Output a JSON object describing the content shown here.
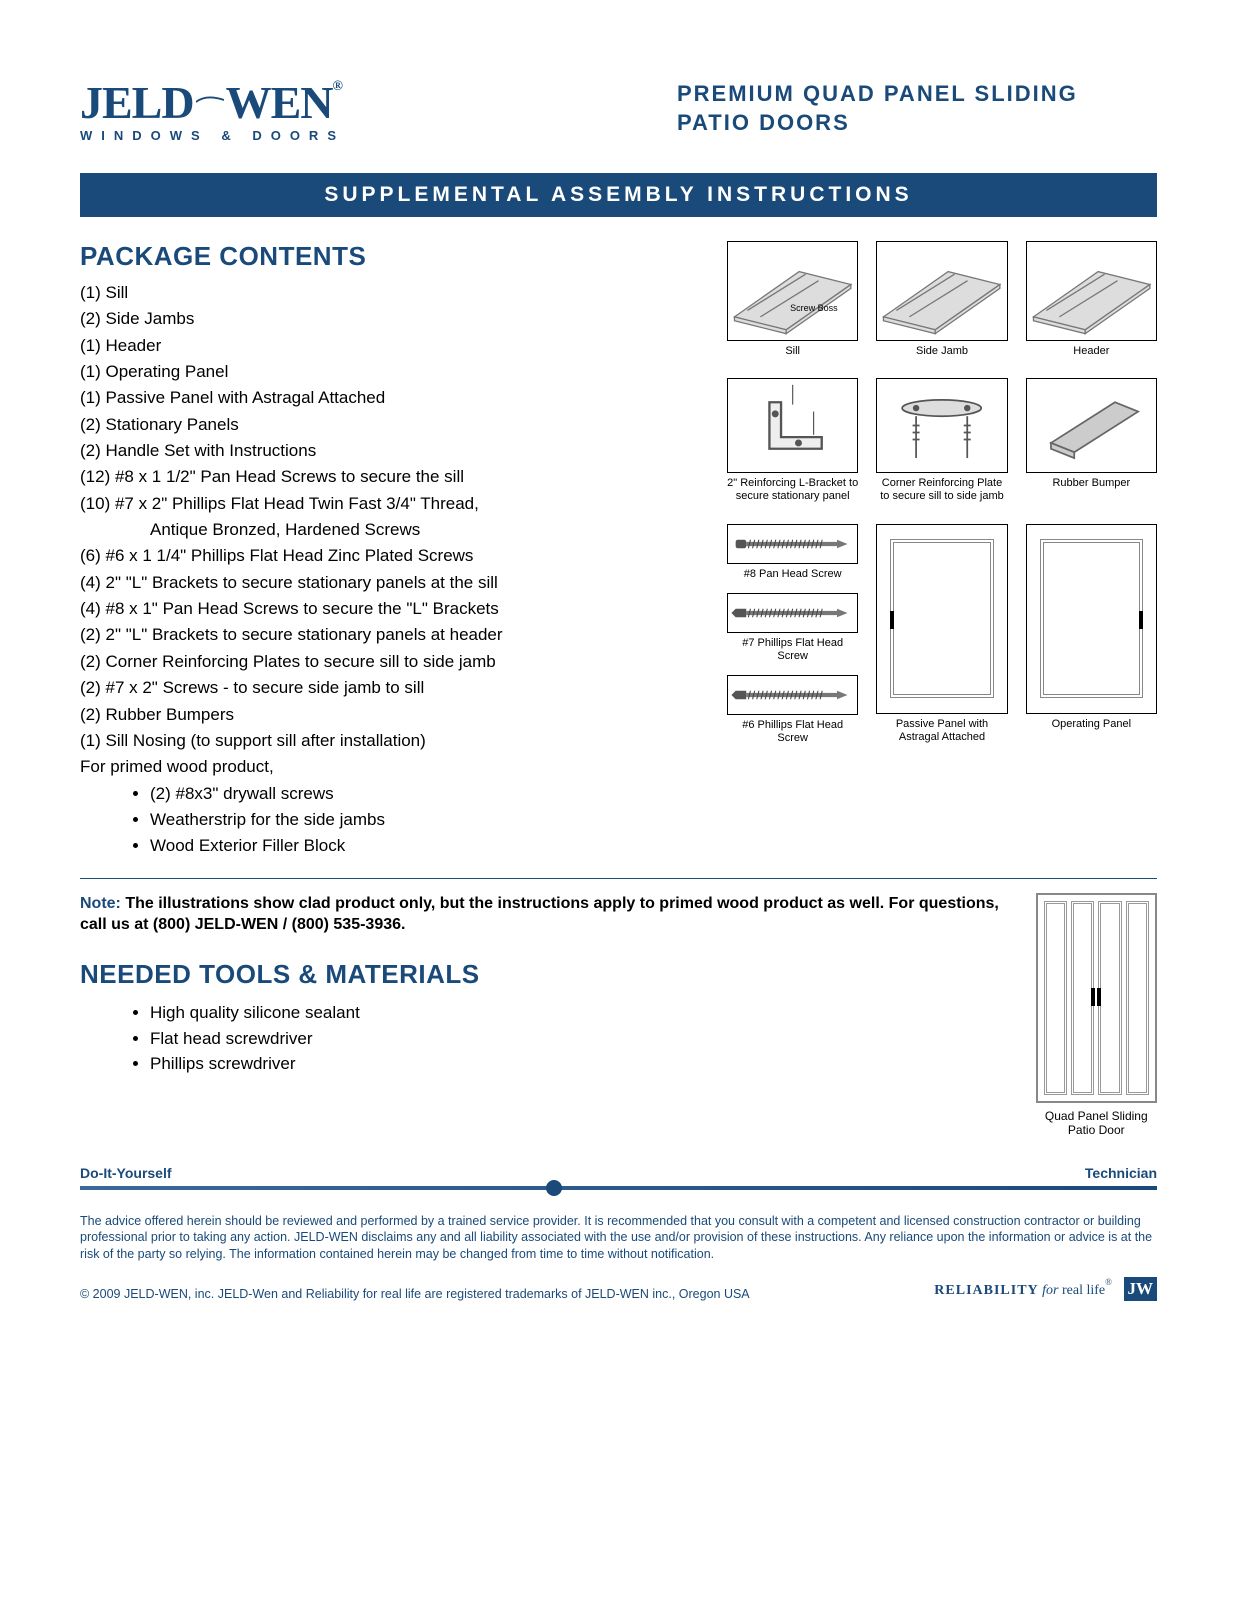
{
  "brand": {
    "name_left": "JELD",
    "name_right": "WEN",
    "reg": "®",
    "tagline": "WINDOWS & DOORS",
    "color": "#1a4a7a"
  },
  "product_title": "PREMIUM QUAD PANEL SLIDING PATIO DOORS",
  "banner": "SUPPLEMENTAL ASSEMBLY INSTRUCTIONS",
  "package": {
    "heading": "PACKAGE CONTENTS",
    "items": [
      "(1) Sill",
      "(2) Side Jambs",
      "(1) Header",
      "(1) Operating Panel",
      "(1) Passive Panel with Astragal Attached",
      "(2) Stationary Panels",
      "(2) Handle Set with Instructions",
      "(12) #8 x 1 1/2\" Pan Head Screws to secure the sill",
      "(10) #7 x 2\" Phillips Flat Head Twin Fast 3/4\" Thread,",
      "Antique Bronzed, Hardened Screws",
      "(6) #6 x 1 1/4\" Phillips Flat Head Zinc Plated Screws",
      "(4) 2\" \"L\" Brackets to secure stationary panels at the sill",
      "(4) #8 x 1\" Pan Head Screws to secure the \"L\" Brackets",
      "(2) 2\" \"L\" Brackets to secure stationary panels at header",
      "(2) Corner Reinforcing Plates to secure sill to side jamb",
      "(2) #7 x 2\" Screws -  to secure side jamb to sill",
      "(2) Rubber Bumpers",
      "(1) Sill Nosing (to support sill after installation)",
      "For primed wood product,"
    ],
    "indent_index": 9,
    "sub_bullets": [
      "(2) #8x3\" drywall screws",
      "Weatherstrip for the side jambs",
      "Wood Exterior Filler Block"
    ]
  },
  "diagrams": {
    "row1": [
      {
        "caption": "Sill",
        "sublabel": "Screw Boss"
      },
      {
        "caption": "Side Jamb"
      },
      {
        "caption": "Header"
      }
    ],
    "row2": [
      {
        "caption": "2\" Reinforcing L-Bracket to secure stationary panel"
      },
      {
        "caption": "Corner Reinforcing Plate to secure sill to side jamb"
      },
      {
        "caption": "Rubber Bumper"
      }
    ],
    "row3_screws": [
      {
        "caption": "#8 Pan Head Screw"
      },
      {
        "caption": "#7 Phillips Flat Head Screw"
      },
      {
        "caption": "#6 Phillips Flat Head Screw"
      }
    ],
    "row3_panels": [
      {
        "caption": "Passive Panel with Astragal Attached"
      },
      {
        "caption": "Operating Panel"
      }
    ]
  },
  "note": {
    "label": "Note:",
    "body": " The illustrations show clad product only, but the instructions apply to primed wood product as well. For questions, call us at (800) JELD-WEN / (800) 535-3936.",
    "quad_caption": "Quad Panel Sliding Patio Door"
  },
  "tools": {
    "heading": "NEEDED TOOLS & MATERIALS",
    "items": [
      "High quality silicone sealant",
      "Flat head screwdriver",
      "Phillips screwdriver"
    ]
  },
  "skill": {
    "left": "Do-It-Yourself",
    "right": "Technician",
    "position_pct": 44
  },
  "disclaimer": "The advice offered herein should be reviewed and performed by a trained service provider. It is recommended that you consult with a competent and licensed construction contractor or building professional prior to taking any action. JELD-WEN disclaims any and all liability associated with the use and/or provision of these instructions. Any reliance upon the information or advice is at the risk of the party so relying. The information contained herein may be changed from time to time without notification.",
  "copyright": "© 2009 JELD-WEN, inc.  JELD-Wen and Reliability for real life are registered trademarks of JELD-WEN inc., Oregon USA",
  "reliability": {
    "bold": "RELIABILITY",
    "italic": " for ",
    "rest": "real life",
    "reg": "®",
    "badge": "JW"
  }
}
